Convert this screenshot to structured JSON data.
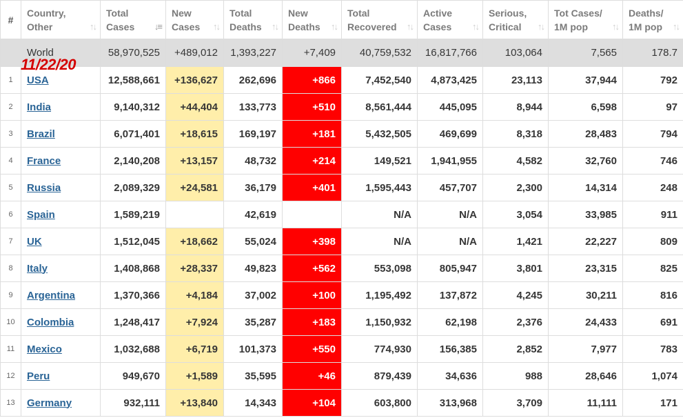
{
  "overlay_date": "11/22/20",
  "headers": [
    {
      "key": "rank",
      "line1": "#",
      "line2": "",
      "sort": "none"
    },
    {
      "key": "country",
      "line1": "Country,",
      "line2": "Other",
      "sort": "updown"
    },
    {
      "key": "total_cases",
      "line1": "Total",
      "line2": "Cases",
      "sort": "desc"
    },
    {
      "key": "new_cases",
      "line1": "New",
      "line2": "Cases",
      "sort": "updown"
    },
    {
      "key": "total_deaths",
      "line1": "Total",
      "line2": "Deaths",
      "sort": "updown"
    },
    {
      "key": "new_deaths",
      "line1": "New",
      "line2": "Deaths",
      "sort": "updown"
    },
    {
      "key": "total_recovered",
      "line1": "Total",
      "line2": "Recovered",
      "sort": "updown"
    },
    {
      "key": "active_cases",
      "line1": "Active",
      "line2": "Cases",
      "sort": "updown"
    },
    {
      "key": "serious",
      "line1": "Serious,",
      "line2": "Critical",
      "sort": "updown"
    },
    {
      "key": "cases_per_1m",
      "line1": "Tot Cases/",
      "line2": "1M pop",
      "sort": "updown"
    },
    {
      "key": "deaths_per_1m",
      "line1": "Deaths/",
      "line2": "1M pop",
      "sort": "updown"
    }
  ],
  "world": {
    "country": "World",
    "total_cases": "58,970,525",
    "new_cases": "+489,012",
    "total_deaths": "1,393,227",
    "new_deaths": "+7,409",
    "total_recovered": "40,759,532",
    "active_cases": "16,817,766",
    "serious": "103,064",
    "cases_per_1m": "7,565",
    "deaths_per_1m": "178.7"
  },
  "rows": [
    {
      "rank": "1",
      "country": "USA",
      "total_cases": "12,588,661",
      "new_cases": "+136,627",
      "total_deaths": "262,696",
      "new_deaths": "+866",
      "total_recovered": "7,452,540",
      "active_cases": "4,873,425",
      "serious": "23,113",
      "cases_per_1m": "37,944",
      "deaths_per_1m": "792"
    },
    {
      "rank": "2",
      "country": "India",
      "total_cases": "9,140,312",
      "new_cases": "+44,404",
      "total_deaths": "133,773",
      "new_deaths": "+510",
      "total_recovered": "8,561,444",
      "active_cases": "445,095",
      "serious": "8,944",
      "cases_per_1m": "6,598",
      "deaths_per_1m": "97"
    },
    {
      "rank": "3",
      "country": "Brazil",
      "total_cases": "6,071,401",
      "new_cases": "+18,615",
      "total_deaths": "169,197",
      "new_deaths": "+181",
      "total_recovered": "5,432,505",
      "active_cases": "469,699",
      "serious": "8,318",
      "cases_per_1m": "28,483",
      "deaths_per_1m": "794"
    },
    {
      "rank": "4",
      "country": "France",
      "total_cases": "2,140,208",
      "new_cases": "+13,157",
      "total_deaths": "48,732",
      "new_deaths": "+214",
      "total_recovered": "149,521",
      "active_cases": "1,941,955",
      "serious": "4,582",
      "cases_per_1m": "32,760",
      "deaths_per_1m": "746"
    },
    {
      "rank": "5",
      "country": "Russia",
      "total_cases": "2,089,329",
      "new_cases": "+24,581",
      "total_deaths": "36,179",
      "new_deaths": "+401",
      "total_recovered": "1,595,443",
      "active_cases": "457,707",
      "serious": "2,300",
      "cases_per_1m": "14,314",
      "deaths_per_1m": "248"
    },
    {
      "rank": "6",
      "country": "Spain",
      "total_cases": "1,589,219",
      "new_cases": "",
      "total_deaths": "42,619",
      "new_deaths": "",
      "total_recovered": "N/A",
      "active_cases": "N/A",
      "serious": "3,054",
      "cases_per_1m": "33,985",
      "deaths_per_1m": "911"
    },
    {
      "rank": "7",
      "country": "UK",
      "total_cases": "1,512,045",
      "new_cases": "+18,662",
      "total_deaths": "55,024",
      "new_deaths": "+398",
      "total_recovered": "N/A",
      "active_cases": "N/A",
      "serious": "1,421",
      "cases_per_1m": "22,227",
      "deaths_per_1m": "809"
    },
    {
      "rank": "8",
      "country": "Italy",
      "total_cases": "1,408,868",
      "new_cases": "+28,337",
      "total_deaths": "49,823",
      "new_deaths": "+562",
      "total_recovered": "553,098",
      "active_cases": "805,947",
      "serious": "3,801",
      "cases_per_1m": "23,315",
      "deaths_per_1m": "825"
    },
    {
      "rank": "9",
      "country": "Argentina",
      "total_cases": "1,370,366",
      "new_cases": "+4,184",
      "total_deaths": "37,002",
      "new_deaths": "+100",
      "total_recovered": "1,195,492",
      "active_cases": "137,872",
      "serious": "4,245",
      "cases_per_1m": "30,211",
      "deaths_per_1m": "816"
    },
    {
      "rank": "10",
      "country": "Colombia",
      "total_cases": "1,248,417",
      "new_cases": "+7,924",
      "total_deaths": "35,287",
      "new_deaths": "+183",
      "total_recovered": "1,150,932",
      "active_cases": "62,198",
      "serious": "2,376",
      "cases_per_1m": "24,433",
      "deaths_per_1m": "691"
    },
    {
      "rank": "11",
      "country": "Mexico",
      "total_cases": "1,032,688",
      "new_cases": "+6,719",
      "total_deaths": "101,373",
      "new_deaths": "+550",
      "total_recovered": "774,930",
      "active_cases": "156,385",
      "serious": "2,852",
      "cases_per_1m": "7,977",
      "deaths_per_1m": "783"
    },
    {
      "rank": "12",
      "country": "Peru",
      "total_cases": "949,670",
      "new_cases": "+1,589",
      "total_deaths": "35,595",
      "new_deaths": "+46",
      "total_recovered": "879,439",
      "active_cases": "34,636",
      "serious": "988",
      "cases_per_1m": "28,646",
      "deaths_per_1m": "1,074"
    },
    {
      "rank": "13",
      "country": "Germany",
      "total_cases": "932,111",
      "new_cases": "+13,840",
      "total_deaths": "14,343",
      "new_deaths": "+104",
      "total_recovered": "603,800",
      "active_cases": "313,968",
      "serious": "3,709",
      "cases_per_1m": "11,111",
      "deaths_per_1m": "171"
    }
  ],
  "colors": {
    "new_cases_fill": "#ffeeaa",
    "new_deaths_fill": "#ff0000",
    "world_row": "#dedede",
    "link": "#2a6496",
    "date_overlay": "#d40000"
  }
}
